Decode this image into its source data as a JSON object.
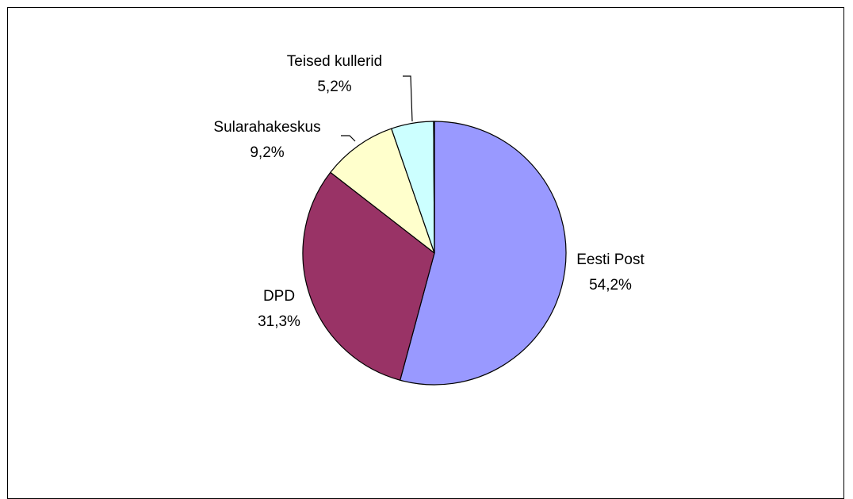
{
  "chart_data": {
    "type": "pie",
    "title": "",
    "start_angle_deg": 0,
    "direction": "clockwise",
    "slices": [
      {
        "name": "Eesti Post",
        "value": 54.2,
        "label": "54,2%",
        "color": "#9999FF"
      },
      {
        "name": "DPD",
        "value": 31.3,
        "label": "31,3%",
        "color": "#993366"
      },
      {
        "name": "Sularahakeskus",
        "value": 9.2,
        "label": "9,2%",
        "color": "#FFFFCC"
      },
      {
        "name": "Teised kullerid",
        "value": 5.2,
        "label": "5,2%",
        "color": "#CCFFFF"
      },
      {
        "name": "",
        "value": 0.1,
        "label": "",
        "color": "#6699CC"
      }
    ],
    "legend": "none",
    "border_color": "#000000"
  }
}
